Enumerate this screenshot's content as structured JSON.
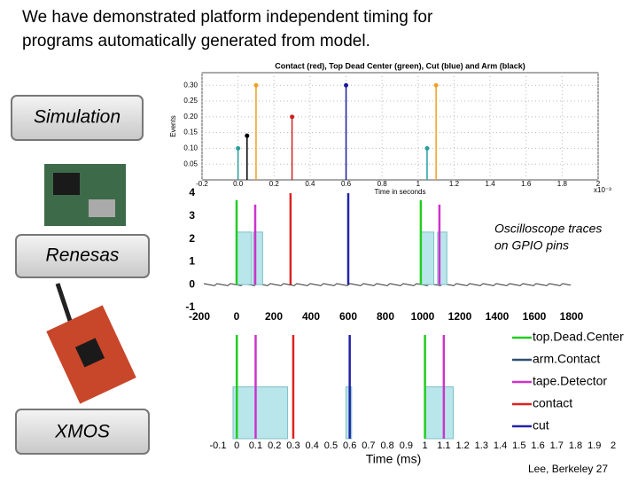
{
  "header": {
    "title_lines": [
      "We have demonstrated platform independent timing for",
      "programs automatically generated from model."
    ]
  },
  "labels": [
    "Simulation",
    "Renesas",
    "XMOS"
  ],
  "annotation": [
    "Oscilloscope traces",
    "on GPIO pins"
  ],
  "footer": "Lee, Berkeley 27",
  "chart_data": [
    {
      "type": "stem",
      "title": "Contact (red), Top Dead Center (green), Cut (blue) and Arm (black)",
      "y_label": "Events",
      "x_label": "Time in seconds",
      "x_multiplier": "x10⁻³",
      "x": [
        0.0,
        0.05,
        0.1,
        0.3,
        0.6,
        1.05,
        1.1
      ],
      "values": [
        0.1,
        0.14,
        0.3,
        0.2,
        0.3,
        0.1,
        0.3
      ],
      "colors": [
        "#2a9d9d",
        "#000000",
        "#f0a020",
        "#cc2222",
        "#1a1a9a",
        "#2a9d9d",
        "#f0a020"
      ],
      "xlim": [
        -0.2,
        2.0
      ],
      "ylim": [
        0,
        0.34
      ],
      "xticks": [
        -0.2,
        {
          "value": 0,
          "label": "0.0"
        },
        0.2,
        0.4,
        0.6,
        0.8,
        1,
        1.2,
        1.4,
        1.6,
        1.8,
        2
      ],
      "yticks": [
        0.05,
        {
          "value": 0.1,
          "label": "0.10"
        },
        0.15,
        {
          "value": 0.2,
          "label": "0.20"
        },
        0.25,
        {
          "value": 0.3,
          "label": "0.30"
        }
      ],
      "grid": true
    },
    {
      "type": "pulse",
      "xlim": [
        -200,
        1800
      ],
      "ylim": [
        -1,
        4
      ],
      "xticks": [
        -200,
        0,
        200,
        400,
        600,
        800,
        1000,
        1200,
        1400,
        1600,
        1800
      ],
      "yticks": [
        -1,
        0,
        1,
        2,
        3,
        4
      ],
      "spikes": {
        "x": [
          0,
          100,
          290,
          600,
          990,
          1090
        ],
        "values": [
          3.7,
          3.5,
          4,
          4,
          3.7,
          3.5
        ],
        "colors": [
          "#22cc22",
          "#cc33cc",
          "#dd2222",
          "#2222aa",
          "#22cc22",
          "#cc33cc"
        ]
      },
      "pulses": {
        "starts": [
          0,
          90,
          990,
          1080
        ],
        "ends": [
          80,
          140,
          1060,
          1130
        ],
        "values": [
          2.3,
          2.3,
          2.3,
          2.3
        ],
        "color": "#b8e6ea"
      }
    },
    {
      "type": "pulse",
      "x_label": "Time (ms)",
      "xlim": [
        -0.1,
        2.0
      ],
      "ylim": [
        0,
        1
      ],
      "xticks": [
        -0.1,
        0,
        0.1,
        0.2,
        0.3,
        0.4,
        0.5,
        0.6,
        0.7,
        0.8,
        0.9,
        1,
        1.1,
        1.2,
        1.3,
        1.4,
        1.5,
        1.6,
        1.7,
        1.8,
        1.9,
        2
      ],
      "series": [
        {
          "name": "top.Dead.Center",
          "color": "#22cc22",
          "x": [
            0,
            1
          ],
          "values": [
            1,
            1
          ]
        },
        {
          "name": "arm.Contact",
          "color": "#2f4f6f",
          "x": [],
          "values": []
        },
        {
          "name": "tape.Detector",
          "color": "#cc33cc",
          "x": [
            0.1,
            1.1
          ],
          "values": [
            1,
            1
          ]
        },
        {
          "name": "contact",
          "color": "#dd2222",
          "x": [
            0.3
          ],
          "values": [
            1
          ]
        },
        {
          "name": "cut",
          "color": "#2222aa",
          "x": [
            0.6
          ],
          "values": [
            1
          ]
        }
      ],
      "pulses": {
        "starts": [
          -0.02,
          0.58,
          1.0
        ],
        "ends": [
          0.27,
          0.61,
          1.15
        ],
        "values": [
          0.5,
          0.5,
          0.5
        ],
        "color": "#b8e6ea"
      }
    }
  ]
}
